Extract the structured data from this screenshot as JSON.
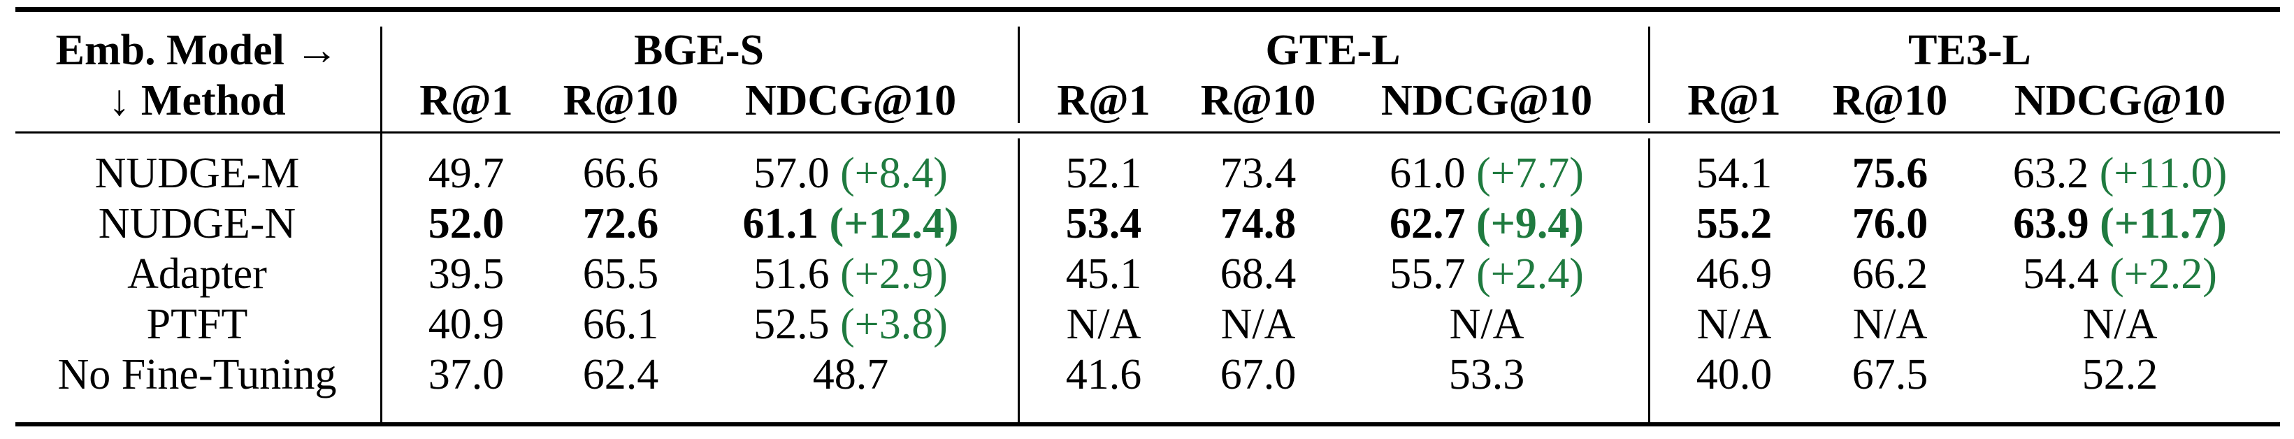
{
  "header": {
    "emb_model_label": "Emb. Model →",
    "method_label": "↓ Method",
    "models": [
      "BGE-S",
      "GTE-L",
      "TE3-L"
    ],
    "metrics": [
      "R@1",
      "R@10",
      "NDCG@10"
    ]
  },
  "rows": [
    {
      "method": "NUDGE-M",
      "cells": [
        {
          "v": "49.7"
        },
        {
          "v": "66.6"
        },
        {
          "v": "57.0",
          "d": "(+8.4)"
        },
        {
          "v": "52.1"
        },
        {
          "v": "73.4"
        },
        {
          "v": "61.0",
          "d": "(+7.7)"
        },
        {
          "v": "54.1"
        },
        {
          "v": "75.6",
          "b": true
        },
        {
          "v": "63.2",
          "d": "(+11.0)"
        }
      ]
    },
    {
      "method": "NUDGE-N",
      "cells": [
        {
          "v": "52.0",
          "b": true
        },
        {
          "v": "72.6",
          "b": true
        },
        {
          "v": "61.1",
          "d": "(+12.4)",
          "b": true
        },
        {
          "v": "53.4",
          "b": true
        },
        {
          "v": "74.8",
          "b": true
        },
        {
          "v": "62.7",
          "d": "(+9.4)",
          "b": true
        },
        {
          "v": "55.2",
          "b": true
        },
        {
          "v": "76.0",
          "b": true
        },
        {
          "v": "63.9",
          "d": "(+11.7)",
          "b": true
        }
      ]
    },
    {
      "method": "Adapter",
      "cells": [
        {
          "v": "39.5"
        },
        {
          "v": "65.5"
        },
        {
          "v": "51.6",
          "d": "(+2.9)"
        },
        {
          "v": "45.1"
        },
        {
          "v": "68.4"
        },
        {
          "v": "55.7",
          "d": "(+2.4)"
        },
        {
          "v": "46.9"
        },
        {
          "v": "66.2"
        },
        {
          "v": "54.4",
          "d": "(+2.2)"
        }
      ]
    },
    {
      "method": "PTFT",
      "cells": [
        {
          "v": "40.9"
        },
        {
          "v": "66.1"
        },
        {
          "v": "52.5",
          "d": "(+3.8)"
        },
        {
          "v": "N/A"
        },
        {
          "v": "N/A"
        },
        {
          "v": "N/A"
        },
        {
          "v": "N/A"
        },
        {
          "v": "N/A"
        },
        {
          "v": "N/A"
        }
      ]
    },
    {
      "method": "No Fine-Tuning",
      "cells": [
        {
          "v": "37.0"
        },
        {
          "v": "62.4"
        },
        {
          "v": "48.7"
        },
        {
          "v": "41.6"
        },
        {
          "v": "67.0"
        },
        {
          "v": "53.3"
        },
        {
          "v": "40.0"
        },
        {
          "v": "67.5"
        },
        {
          "v": "52.2"
        }
      ]
    }
  ],
  "colors": {
    "text": "#000000",
    "delta": "#1f7a3f"
  }
}
